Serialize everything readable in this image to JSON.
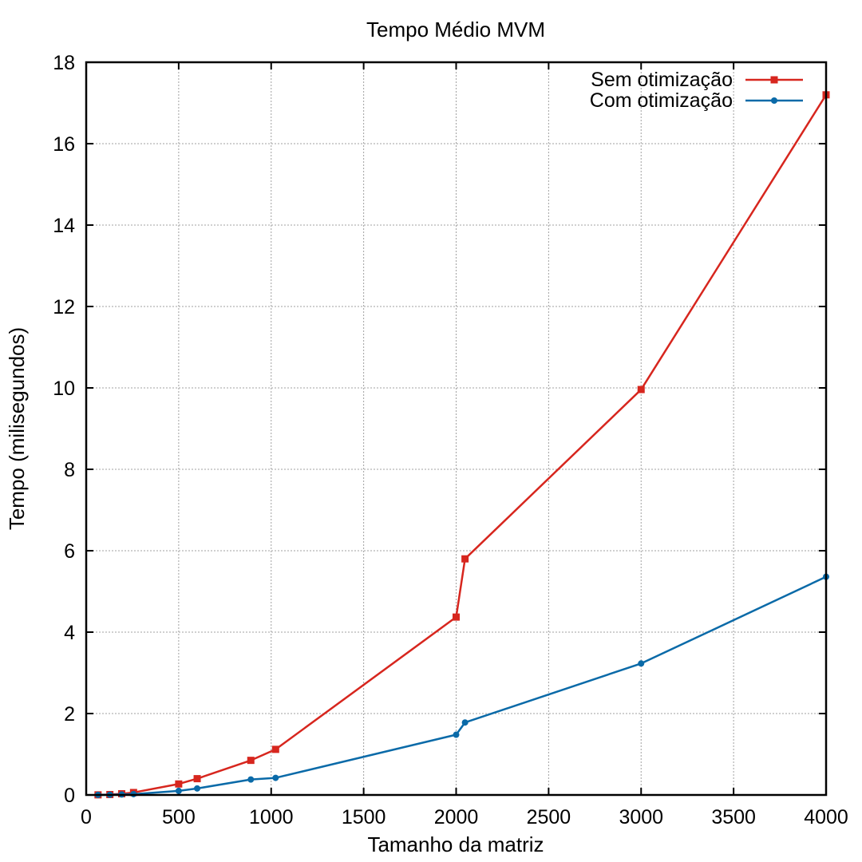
{
  "chart_data": {
    "type": "line",
    "title": "Tempo Médio MVM",
    "xlabel": "Tamanho da matriz",
    "ylabel": "Tempo (milisegundos)",
    "xlim": [
      0,
      4000
    ],
    "ylim": [
      0,
      18
    ],
    "xticks": [
      0,
      500,
      1000,
      1500,
      2000,
      2500,
      3000,
      3500,
      4000
    ],
    "yticks": [
      0,
      2,
      4,
      6,
      8,
      10,
      12,
      14,
      16,
      18
    ],
    "grid": true,
    "legend_position": "top-right",
    "series": [
      {
        "name": "Sem otimização",
        "color": "#d7261e",
        "marker": "square",
        "x": [
          64,
          128,
          192,
          256,
          500,
          600,
          890,
          1024,
          2000,
          2048,
          3000,
          4000
        ],
        "y": [
          0.003,
          0.01,
          0.03,
          0.06,
          0.27,
          0.4,
          0.85,
          1.12,
          4.37,
          5.8,
          9.96,
          17.2
        ]
      },
      {
        "name": "Com otimização",
        "color": "#0a6aa8",
        "marker": "circle",
        "x": [
          64,
          128,
          192,
          256,
          500,
          600,
          890,
          1024,
          2000,
          2048,
          3000,
          4000
        ],
        "y": [
          0.002,
          0.005,
          0.012,
          0.02,
          0.1,
          0.16,
          0.38,
          0.42,
          1.48,
          1.78,
          3.23,
          5.36
        ]
      }
    ]
  }
}
